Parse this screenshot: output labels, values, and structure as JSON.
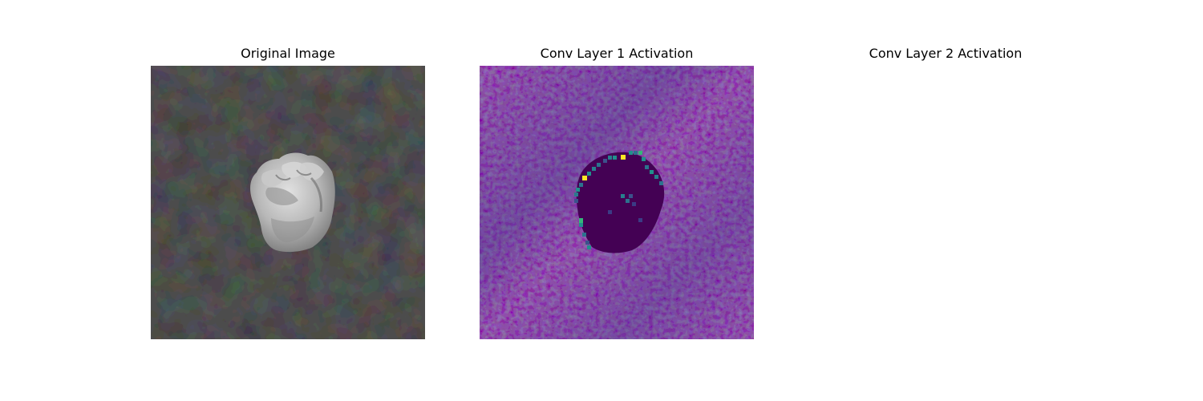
{
  "figure": {
    "panels": [
      {
        "title": "Original Image",
        "colormap": "gray",
        "has_image": true
      },
      {
        "title": "Conv Layer 1 Activation",
        "colormap": "viridis",
        "has_image": true
      },
      {
        "title": "Conv Layer 2 Activation",
        "colormap": "viridis",
        "has_image": false
      }
    ]
  },
  "colors": {
    "background": "#ffffff",
    "gray_bg_dark": "#111111",
    "gray_bg_mid": "#1c1c1c",
    "gray_bg_light": "#2a2a2a",
    "fist_light": "#d2d2d2",
    "fist_mid": "#a8a8a8",
    "fist_shadow": "#6e6e6e",
    "viridis_low": "#440154",
    "viridis_low2": "#46085c",
    "viridis_mid": "#3b3b85",
    "viridis_teal": "#21908c",
    "viridis_green": "#35b779",
    "viridis_yellow": "#fde725"
  }
}
